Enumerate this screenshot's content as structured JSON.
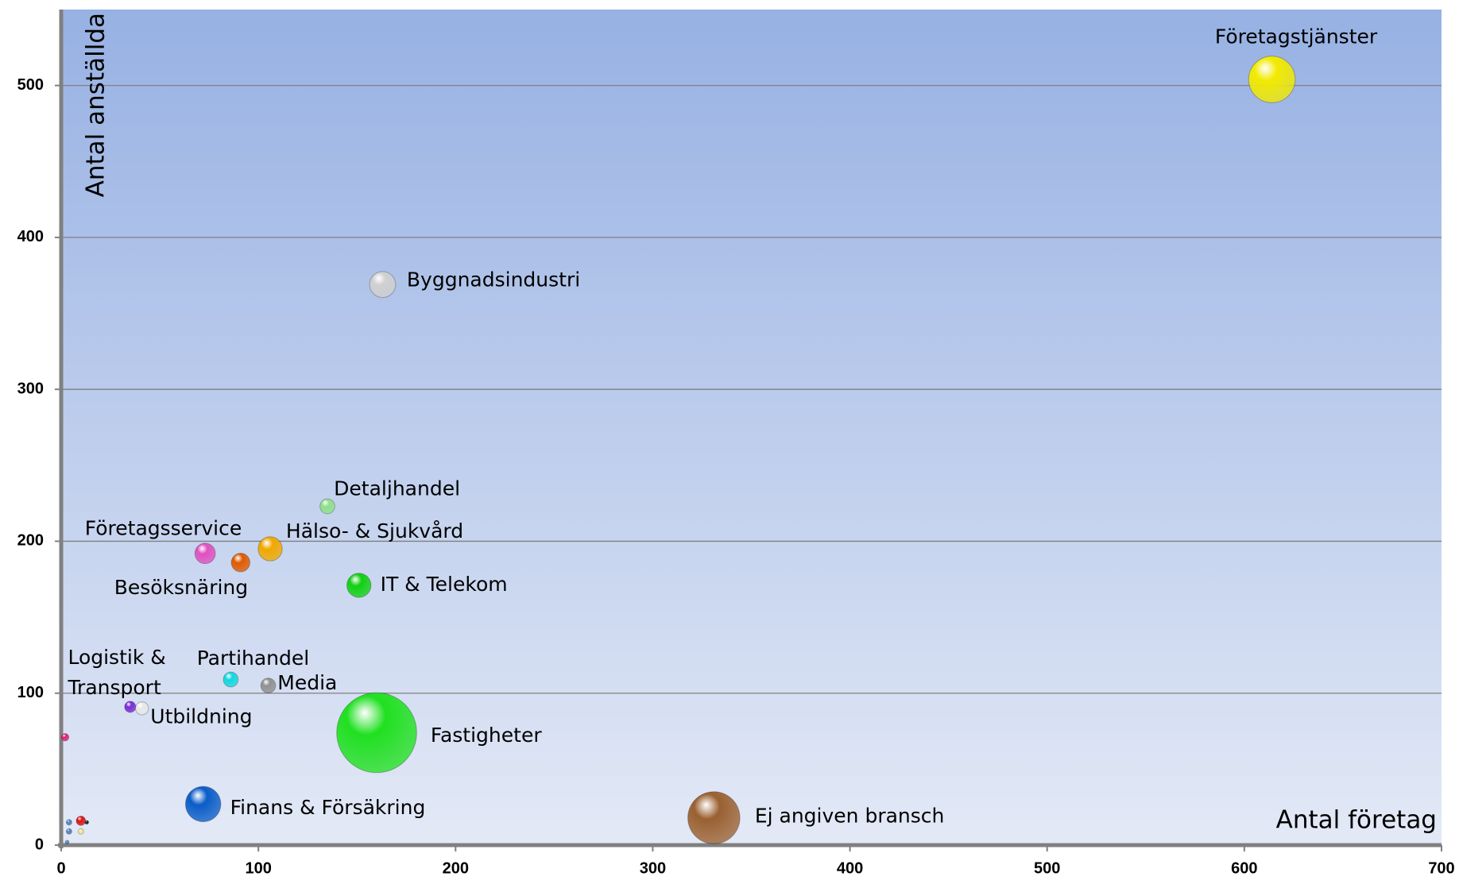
{
  "chart_data": {
    "type": "bubble",
    "xlabel": "Antal företag",
    "ylabel": "Antal anställda",
    "xlim": [
      0,
      700
    ],
    "xticks": [
      0,
      100,
      200,
      300,
      400,
      500,
      600,
      700
    ],
    "ylim": [
      0,
      550
    ],
    "yticks": [
      0,
      100,
      200,
      300,
      400,
      500
    ],
    "grid": true,
    "labels": [
      "Företagstjänster",
      "Byggnadsindustri",
      "Detaljhandel",
      "Hälso- & Sjukvård",
      "Företagsservice",
      "Besöksnäring",
      "IT & Telekom",
      "Partihandel",
      "Media",
      "Logistik & Transport",
      "Utbildning",
      "Fastigheter",
      "Finans & Försäkring",
      "Ej angiven bransch",
      null,
      null,
      null,
      null,
      null,
      null,
      null
    ],
    "x": [
      614,
      163,
      135,
      106,
      73,
      91,
      151,
      86,
      105,
      35,
      41,
      160,
      72,
      331,
      2,
      10,
      13,
      4,
      4,
      10,
      3
    ],
    "y": [
      504,
      369,
      223,
      195,
      192,
      186,
      171,
      109,
      105,
      91,
      90,
      74,
      27,
      18,
      71,
      16,
      15,
      15,
      9,
      9,
      2
    ],
    "sizes": [
      25,
      14,
      8,
      13,
      11,
      10,
      13,
      8,
      8,
      6,
      7,
      43,
      19,
      28,
      4,
      5,
      2,
      3,
      3,
      3,
      2
    ],
    "colors": [
      "#f2ea00",
      "#d0d0d0",
      "#8fe08a",
      "#f0a800",
      "#e050c0",
      "#e05a00",
      "#10d010",
      "#10d8e0",
      "#909090",
      "#7a2ad8",
      "#e8e8e8",
      "#20e020",
      "#0a5cc8",
      "#9a6030",
      "#e02070",
      "#e01010",
      "#111111",
      "#4a80c0",
      "#4a80c0",
      "#f0e890",
      "#4a80c0"
    ]
  }
}
